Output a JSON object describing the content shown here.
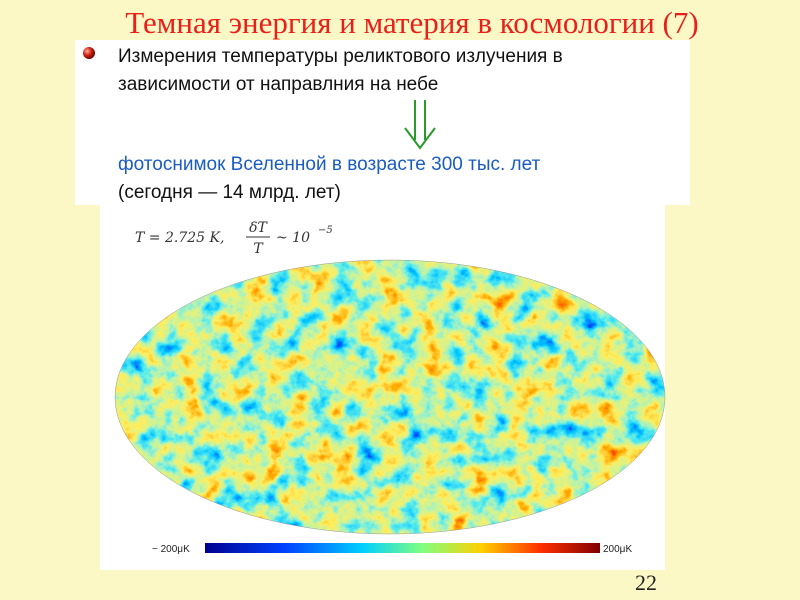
{
  "header": {
    "title": "Темная энергия и материя в космологии (7)"
  },
  "bullet": {
    "lines": [
      "Измерения температуры реликтового излучения в",
      "зависимости от направлния на небе"
    ]
  },
  "caption": {
    "lines": [
      "фотоснимок Вселенной в возрасте 300 тыс. лет",
      "(сегодня — 14 млрд. лет)"
    ]
  },
  "formula": {
    "temperature": "T = 2.725 K,",
    "numerator": "δT",
    "denominator": "T",
    "approx": "~ 10",
    "exponent": "−5"
  },
  "colorbar": {
    "min_label": "− 200μK",
    "max_label": "200μK"
  },
  "page_number": "22"
}
